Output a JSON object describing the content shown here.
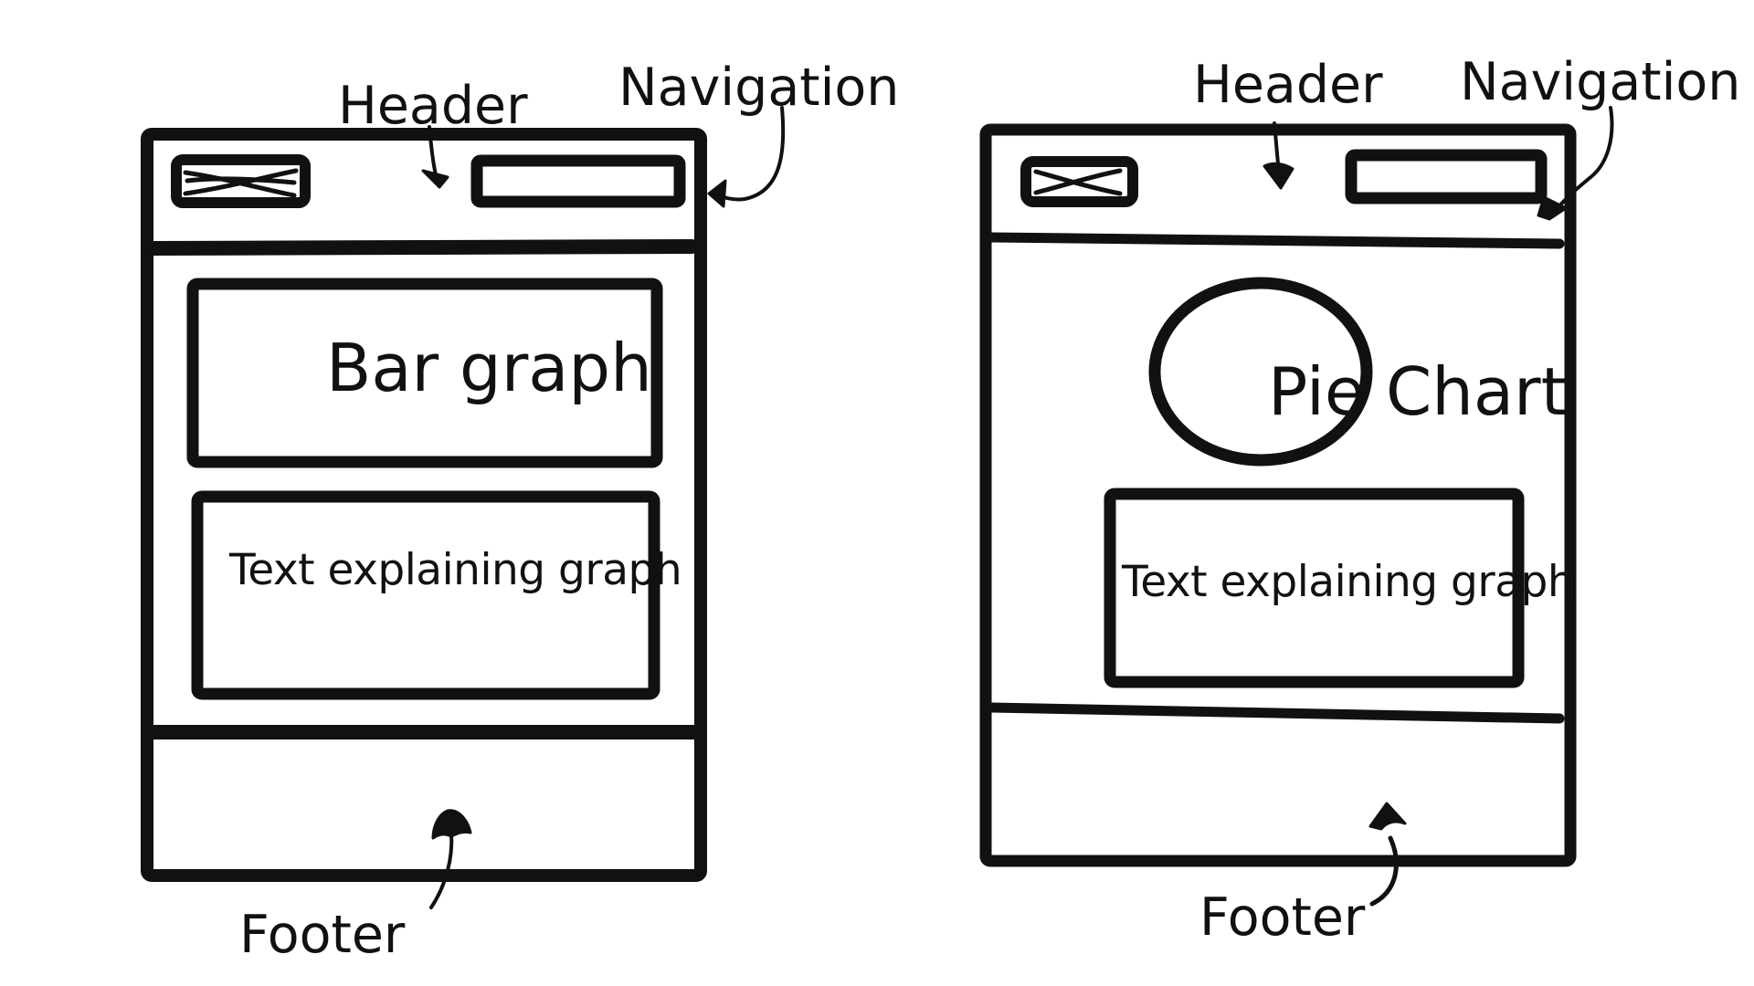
{
  "wireframes": [
    {
      "id": "bar-graph-layout",
      "labels": {
        "header": "Header",
        "navigation": "Navigation",
        "footer": "Footer"
      },
      "content_box_label": "Bar graph",
      "text_box_label": "Text explaining graph"
    },
    {
      "id": "pie-chart-layout",
      "labels": {
        "header": "Header",
        "navigation": "Navigation",
        "footer": "Footer"
      },
      "content_box_label": "Pie Chart",
      "text_box_label": "Text explaining graph"
    }
  ],
  "colors": {
    "ink": "#111111",
    "background": "#ffffff"
  }
}
